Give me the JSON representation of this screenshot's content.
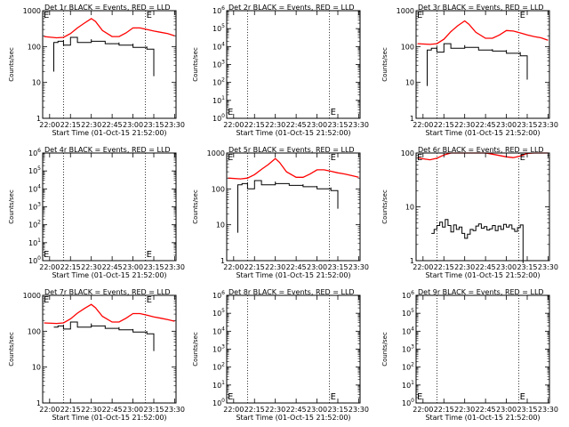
{
  "figure": {
    "background": "#ffffff",
    "event_color": "#000000",
    "lld_color": "#ff0000"
  },
  "chart_data": [
    {
      "type": "line",
      "title": "Det 1r BLACK = Events, RED = LLD",
      "xlabel": "Start Time (01-Oct-15 21:52:00)",
      "ylabel": "Counts/sec",
      "xticks": [
        "22:00",
        "22:15",
        "22:30",
        "22:45",
        "23:00",
        "23:15",
        "23:30"
      ],
      "xlim": [
        "21:55",
        "23:31"
      ],
      "yscale": "log",
      "ylim": [
        1,
        1000
      ],
      "yticks": [
        "1",
        "10",
        "100",
        "1000"
      ],
      "marker": "E",
      "vlines": [
        "22:10",
        "23:09"
      ],
      "series": [
        {
          "role": "LLD",
          "color": "#ff0000",
          "x": [
            "21:56",
            "22:05",
            "22:10",
            "22:15",
            "22:20",
            "22:25",
            "22:30",
            "22:33",
            "22:38",
            "22:45",
            "22:50",
            "22:55",
            "23:00",
            "23:05",
            "23:10",
            "23:15",
            "23:20",
            "23:25",
            "23:30"
          ],
          "y": [
            190,
            175,
            180,
            230,
            330,
            450,
            600,
            500,
            280,
            190,
            190,
            240,
            330,
            330,
            300,
            270,
            250,
            230,
            200
          ]
        },
        {
          "role": "Events",
          "color": "#000000",
          "x": [
            "22:03",
            "22:03",
            "22:06",
            "22:10",
            "22:10",
            "22:15",
            "22:20",
            "22:20",
            "22:30",
            "22:30",
            "22:40",
            "22:40",
            "22:50",
            "22:50",
            "23:00",
            "23:00",
            "23:10",
            "23:10",
            "23:15",
            "23:15"
          ],
          "y": [
            20,
            130,
            140,
            150,
            110,
            180,
            160,
            130,
            160,
            140,
            140,
            120,
            130,
            110,
            120,
            95,
            100,
            85,
            80,
            15
          ]
        }
      ]
    },
    {
      "type": "line",
      "title": "Det 2r BLACK = Events, RED = LLD",
      "xlabel": "Start Time (01-Oct-15 21:52:00)",
      "ylabel": "Counts/sec",
      "xticks": [
        "22:00",
        "22:15",
        "22:30",
        "22:45",
        "23:00",
        "23:15",
        "23:30"
      ],
      "xlim": [
        "21:55",
        "23:31"
      ],
      "yscale": "log",
      "ylim": [
        1,
        1000000
      ],
      "yticks": [
        "10^0",
        "10^1",
        "10^2",
        "10^3",
        "10^4",
        "10^5",
        "10^6"
      ],
      "marker": "E",
      "vlines": [
        "22:10",
        "23:09"
      ],
      "series": []
    },
    {
      "type": "line",
      "title": "Det 3r BLACK = Events, RED = LLD",
      "xlabel": "Start Time (01-Oct-15 21:52:00)",
      "ylabel": "Counts/sec",
      "xticks": [
        "22:00",
        "22:15",
        "22:30",
        "22:45",
        "23:00",
        "23:15",
        "23:30"
      ],
      "xlim": [
        "21:55",
        "23:31"
      ],
      "yscale": "log",
      "ylim": [
        1,
        1000
      ],
      "yticks": [
        "1",
        "10",
        "100",
        "1000"
      ],
      "marker": "E",
      "vlines": [
        "22:10",
        "23:09"
      ],
      "series": [
        {
          "role": "LLD",
          "color": "#ff0000",
          "x": [
            "21:56",
            "22:05",
            "22:10",
            "22:15",
            "22:20",
            "22:25",
            "22:30",
            "22:33",
            "22:38",
            "22:45",
            "22:50",
            "22:55",
            "23:00",
            "23:05",
            "23:10",
            "23:15",
            "23:20",
            "23:25",
            "23:30"
          ],
          "y": [
            120,
            115,
            120,
            160,
            260,
            380,
            520,
            420,
            250,
            170,
            170,
            210,
            280,
            270,
            240,
            210,
            190,
            175,
            150
          ]
        },
        {
          "role": "Events",
          "color": "#000000",
          "x": [
            "22:03",
            "22:03",
            "22:06",
            "22:10",
            "22:10",
            "22:15",
            "22:20",
            "22:20",
            "22:30",
            "22:30",
            "22:40",
            "22:40",
            "22:50",
            "22:50",
            "23:00",
            "23:00",
            "23:10",
            "23:10",
            "23:15",
            "23:15"
          ],
          "y": [
            8,
            80,
            90,
            100,
            70,
            120,
            110,
            90,
            110,
            95,
            95,
            80,
            85,
            75,
            80,
            65,
            70,
            55,
            50,
            12
          ]
        }
      ]
    },
    {
      "type": "line",
      "title": "Det 4r BLACK = Events, RED = LLD",
      "xlabel": "Start Time (01-Oct-15 21:52:00)",
      "ylabel": "Counts/sec",
      "xticks": [
        "22:00",
        "22:15",
        "22:30",
        "22:45",
        "23:00",
        "23:15",
        "23:30"
      ],
      "xlim": [
        "21:55",
        "23:31"
      ],
      "yscale": "log",
      "ylim": [
        1,
        1000000
      ],
      "yticks": [
        "10^0",
        "10^1",
        "10^2",
        "10^3",
        "10^4",
        "10^5",
        "10^6"
      ],
      "marker": "E",
      "vlines": [
        "22:10",
        "23:09"
      ],
      "series": []
    },
    {
      "type": "line",
      "title": "Det 5r BLACK = Events, RED = LLD",
      "xlabel": "Start Time (01-Oct-15 21:52:00)",
      "ylabel": "Counts/sec",
      "xticks": [
        "22:00",
        "22:15",
        "22:30",
        "22:45",
        "23:00",
        "23:15",
        "23:30"
      ],
      "xlim": [
        "21:55",
        "23:31"
      ],
      "yscale": "log",
      "ylim": [
        1,
        1000
      ],
      "yticks": [
        "1",
        "10",
        "100",
        "1000"
      ],
      "marker": "E",
      "vlines": [
        "22:10",
        "23:09"
      ],
      "series": [
        {
          "role": "LLD",
          "color": "#ff0000",
          "x": [
            "21:56",
            "22:05",
            "22:10",
            "22:15",
            "22:20",
            "22:25",
            "22:30",
            "22:33",
            "22:38",
            "22:45",
            "22:50",
            "22:55",
            "23:00",
            "23:05",
            "23:10",
            "23:15",
            "23:20",
            "23:25",
            "23:30"
          ],
          "y": [
            200,
            190,
            200,
            250,
            350,
            480,
            700,
            550,
            300,
            210,
            210,
            260,
            340,
            340,
            310,
            280,
            260,
            235,
            210
          ]
        },
        {
          "role": "Events",
          "color": "#000000",
          "x": [
            "22:03",
            "22:03",
            "22:06",
            "22:10",
            "22:10",
            "22:15",
            "22:20",
            "22:20",
            "22:30",
            "22:30",
            "22:40",
            "22:40",
            "22:50",
            "22:50",
            "23:00",
            "23:00",
            "23:10",
            "23:10",
            "23:15",
            "23:15"
          ],
          "y": [
            6,
            130,
            140,
            150,
            100,
            170,
            160,
            130,
            160,
            140,
            140,
            125,
            135,
            115,
            120,
            100,
            110,
            90,
            85,
            28
          ]
        }
      ]
    },
    {
      "type": "line",
      "title": "Det 6r BLACK = Events, RED = LLD",
      "xlabel": "Start Time (01-Oct-15 21:52:00)",
      "ylabel": "Counts/sec",
      "xticks": [
        "22:00",
        "22:15",
        "22:30",
        "22:45",
        "23:00",
        "23:15",
        "23:30"
      ],
      "xlim": [
        "21:55",
        "23:31"
      ],
      "yscale": "log",
      "ylim": [
        1,
        100
      ],
      "yticks": [
        "1",
        "10",
        "100"
      ],
      "marker": "E",
      "vlines": [
        "22:10",
        "23:09"
      ],
      "series": [
        {
          "role": "LLD",
          "color": "#ff0000",
          "x": [
            "21:56",
            "22:00",
            "22:05",
            "22:10",
            "22:15",
            "22:20",
            "22:25",
            "22:30",
            "22:35",
            "22:40",
            "22:45",
            "22:50",
            "22:55",
            "23:00",
            "23:05",
            "23:10",
            "23:15",
            "23:20",
            "23:25",
            "23:30"
          ],
          "y": [
            82,
            78,
            75,
            80,
            92,
            100,
            100,
            100,
            100,
            100,
            100,
            95,
            90,
            85,
            82,
            88,
            98,
            100,
            100,
            100
          ]
        },
        {
          "role": "Events",
          "color": "#000000",
          "x": [
            "22:06",
            "22:08",
            "22:10",
            "22:12",
            "22:14",
            "22:16",
            "22:18",
            "22:20",
            "22:22",
            "22:24",
            "22:26",
            "22:28",
            "22:30",
            "22:32",
            "22:34",
            "22:36",
            "22:38",
            "22:40",
            "22:42",
            "22:44",
            "22:46",
            "22:48",
            "22:50",
            "22:52",
            "22:54",
            "22:56",
            "22:58",
            "23:00",
            "23:02",
            "23:04",
            "23:06",
            "23:08",
            "23:10",
            "23:12",
            "23:12"
          ],
          "y": [
            3.2,
            3.8,
            4.5,
            5.2,
            4.2,
            5.8,
            4.5,
            3.4,
            4.6,
            3.8,
            4.2,
            3.2,
            2.6,
            3.1,
            3.8,
            3.6,
            4.4,
            4.8,
            4.0,
            4.3,
            3.7,
            3.9,
            4.5,
            3.6,
            4.4,
            3.8,
            4.7,
            4.2,
            4.6,
            3.9,
            3.5,
            4.1,
            4.6,
            4.4,
            0.9
          ]
        }
      ]
    },
    {
      "type": "line",
      "title": "Det 7r BLACK = Events, RED = LLD",
      "xlabel": "Start Time (01-Oct-15 21:52:00)",
      "ylabel": "Counts/sec",
      "xticks": [
        "22:00",
        "22:15",
        "22:30",
        "22:45",
        "23:00",
        "23:15",
        "23:30"
      ],
      "xlim": [
        "21:55",
        "23:31"
      ],
      "yscale": "log",
      "ylim": [
        1,
        1000
      ],
      "yticks": [
        "1",
        "10",
        "100",
        "1000"
      ],
      "marker": "E",
      "vlines": [
        "22:10",
        "23:09"
      ],
      "series": [
        {
          "role": "LLD",
          "color": "#ff0000",
          "x": [
            "21:56",
            "22:05",
            "22:10",
            "22:15",
            "22:20",
            "22:25",
            "22:30",
            "22:33",
            "22:38",
            "22:45",
            "22:50",
            "22:55",
            "23:00",
            "23:05",
            "23:10",
            "23:15",
            "23:20",
            "23:25",
            "23:30"
          ],
          "y": [
            170,
            165,
            170,
            220,
            320,
            430,
            560,
            450,
            260,
            180,
            180,
            230,
            310,
            310,
            280,
            250,
            230,
            210,
            190
          ]
        },
        {
          "role": "Events",
          "color": "#000000",
          "x": [
            "22:03",
            "22:03",
            "22:06",
            "22:10",
            "22:10",
            "22:15",
            "22:20",
            "22:20",
            "22:30",
            "22:30",
            "22:40",
            "22:40",
            "22:50",
            "22:50",
            "23:00",
            "23:00",
            "23:10",
            "23:10",
            "23:15",
            "23:15"
          ],
          "y": [
            130,
            130,
            140,
            150,
            115,
            180,
            160,
            130,
            165,
            140,
            145,
            120,
            130,
            110,
            115,
            95,
            100,
            85,
            80,
            28
          ]
        }
      ]
    },
    {
      "type": "line",
      "title": "Det 8r BLACK = Events, RED = LLD",
      "xlabel": "Start Time (01-Oct-15 21:52:00)",
      "ylabel": "Counts/sec",
      "xticks": [
        "22:00",
        "22:15",
        "22:30",
        "22:45",
        "23:00",
        "23:15",
        "23:30"
      ],
      "xlim": [
        "21:55",
        "23:31"
      ],
      "yscale": "log",
      "ylim": [
        1,
        1000000
      ],
      "yticks": [
        "10^0",
        "10^1",
        "10^2",
        "10^3",
        "10^4",
        "10^5",
        "10^6"
      ],
      "marker": "E",
      "vlines": [
        "22:10",
        "23:09"
      ],
      "series": []
    },
    {
      "type": "line",
      "title": "Det 9r BLACK = Events, RED = LLD",
      "xlabel": "Start Time (01-Oct-15 21:52:00)",
      "ylabel": "Counts/sec",
      "xticks": [
        "22:00",
        "22:15",
        "22:30",
        "22:45",
        "23:00",
        "23:15",
        "23:30"
      ],
      "xlim": [
        "21:55",
        "23:31"
      ],
      "yscale": "log",
      "ylim": [
        1,
        1000000
      ],
      "yticks": [
        "10^0",
        "10^1",
        "10^2",
        "10^3",
        "10^4",
        "10^5",
        "10^6"
      ],
      "marker": "E",
      "vlines": [
        "22:10",
        "23:09"
      ],
      "series": []
    }
  ]
}
